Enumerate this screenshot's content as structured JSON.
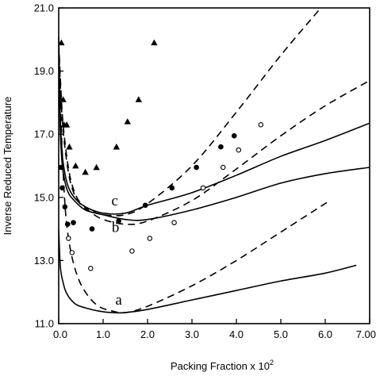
{
  "chart_data": {
    "type": "scatter",
    "xlabel": "Packing Fraction x 10",
    "xlabel_exp": "2",
    "ylabel": "Inverse Reduced Temperature",
    "xlim": [
      0.0,
      7.0
    ],
    "ylim": [
      11.0,
      21.0
    ],
    "x_ticks": [
      {
        "v": 0.0,
        "label": "0.0"
      },
      {
        "v": 1.0,
        "label": "1.0"
      },
      {
        "v": 2.0,
        "label": "2.0"
      },
      {
        "v": 3.0,
        "label": "3.0"
      },
      {
        "v": 4.0,
        "label": "4.0"
      },
      {
        "v": 5.0,
        "label": "5.0"
      },
      {
        "v": 6.0,
        "label": "6.0"
      },
      {
        "v": 7.0,
        "label": "7.00"
      }
    ],
    "y_ticks": [
      {
        "v": 11.0,
        "label": "11.0"
      },
      {
        "v": 13.0,
        "label": "13.0"
      },
      {
        "v": 15.0,
        "label": "15.0"
      },
      {
        "v": 17.0,
        "label": "17.0"
      },
      {
        "v": 19.0,
        "label": "19.0"
      },
      {
        "v": 21.0,
        "label": "21.0"
      }
    ],
    "grid": false,
    "curve_labels": [
      {
        "text": "c",
        "x": 1.26,
        "y": 14.75
      },
      {
        "text": "b",
        "x": 1.28,
        "y": 13.9
      },
      {
        "text": "a",
        "x": 1.35,
        "y": 11.6
      }
    ],
    "series": [
      {
        "marker": "triangle",
        "points": [
          [
            0.06,
            19.9
          ],
          [
            0.1,
            18.1
          ],
          [
            0.12,
            17.3
          ],
          [
            0.18,
            17.3
          ],
          [
            0.24,
            16.6
          ],
          [
            0.38,
            16.0
          ],
          [
            0.6,
            15.8
          ],
          [
            0.85,
            15.95
          ],
          [
            1.3,
            16.6
          ],
          [
            1.55,
            17.4
          ],
          [
            1.8,
            18.1
          ],
          [
            2.15,
            19.9
          ]
        ]
      },
      {
        "marker": "circle-filled",
        "points": [
          [
            0.05,
            15.95
          ],
          [
            0.08,
            15.3
          ],
          [
            0.14,
            14.7
          ],
          [
            0.2,
            14.15
          ],
          [
            0.33,
            14.2
          ],
          [
            0.75,
            14.0
          ],
          [
            1.35,
            14.25
          ],
          [
            1.95,
            14.75
          ],
          [
            2.55,
            15.3
          ],
          [
            3.1,
            15.95
          ],
          [
            3.65,
            16.6
          ],
          [
            3.95,
            16.95
          ]
        ]
      },
      {
        "marker": "circle-open",
        "points": [
          [
            0.22,
            13.7
          ],
          [
            0.3,
            13.25
          ],
          [
            0.72,
            12.75
          ],
          [
            1.65,
            13.3
          ],
          [
            2.05,
            13.7
          ],
          [
            2.6,
            14.2
          ],
          [
            3.25,
            15.3
          ],
          [
            3.7,
            15.95
          ],
          [
            4.05,
            16.5
          ],
          [
            4.55,
            17.3
          ]
        ]
      },
      {
        "style": "solid",
        "points": [
          [
            0.0,
            14.0
          ],
          [
            0.03,
            12.95
          ],
          [
            0.06,
            12.55
          ],
          [
            0.1,
            12.3
          ],
          [
            0.15,
            12.05
          ],
          [
            0.25,
            11.8
          ],
          [
            0.4,
            11.6
          ],
          [
            0.6,
            11.5
          ],
          [
            0.9,
            11.4
          ],
          [
            1.2,
            11.35
          ],
          [
            1.5,
            11.35
          ],
          [
            2.0,
            11.45
          ],
          [
            3.0,
            11.75
          ],
          [
            4.0,
            12.05
          ],
          [
            5.0,
            12.35
          ],
          [
            6.0,
            12.6
          ],
          [
            6.7,
            12.85
          ]
        ]
      },
      {
        "style": "dashed",
        "points": [
          [
            0.0,
            19.9
          ],
          [
            0.05,
            17.5
          ],
          [
            0.1,
            15.8
          ],
          [
            0.15,
            14.6
          ],
          [
            0.2,
            13.9
          ],
          [
            0.3,
            13.1
          ],
          [
            0.45,
            12.4
          ],
          [
            0.65,
            11.9
          ],
          [
            0.9,
            11.55
          ],
          [
            1.2,
            11.4
          ],
          [
            1.5,
            11.35
          ],
          [
            2.0,
            11.55
          ],
          [
            3.0,
            12.2
          ],
          [
            4.0,
            13.0
          ],
          [
            5.0,
            13.9
          ],
          [
            6.05,
            14.85
          ]
        ]
      },
      {
        "style": "solid",
        "points": [
          [
            0.0,
            20.0
          ],
          [
            0.03,
            17.4
          ],
          [
            0.06,
            16.4
          ],
          [
            0.1,
            15.8
          ],
          [
            0.2,
            15.2
          ],
          [
            0.35,
            14.9
          ],
          [
            0.6,
            14.6
          ],
          [
            1.0,
            14.45
          ],
          [
            1.5,
            14.3
          ],
          [
            2.0,
            14.3
          ],
          [
            3.0,
            14.6
          ],
          [
            4.0,
            15.0
          ],
          [
            5.0,
            15.45
          ],
          [
            6.0,
            15.75
          ],
          [
            7.0,
            15.95
          ]
        ]
      },
      {
        "style": "solid",
        "points": [
          [
            0.0,
            20.1
          ],
          [
            0.03,
            17.8
          ],
          [
            0.06,
            16.8
          ],
          [
            0.1,
            16.1
          ],
          [
            0.2,
            15.4
          ],
          [
            0.35,
            15.0
          ],
          [
            0.6,
            14.7
          ],
          [
            1.0,
            14.5
          ],
          [
            1.5,
            14.5
          ],
          [
            2.0,
            14.75
          ],
          [
            3.0,
            15.15
          ],
          [
            4.0,
            15.7
          ],
          [
            5.0,
            16.3
          ],
          [
            6.0,
            16.8
          ],
          [
            7.0,
            17.35
          ]
        ]
      },
      {
        "style": "dashed",
        "points": [
          [
            0.0,
            19.8
          ],
          [
            0.05,
            18.2
          ],
          [
            0.1,
            17.1
          ],
          [
            0.2,
            15.95
          ],
          [
            0.3,
            15.3
          ],
          [
            0.45,
            14.85
          ],
          [
            0.7,
            14.55
          ],
          [
            1.0,
            14.3
          ],
          [
            1.5,
            14.15
          ],
          [
            2.0,
            14.25
          ],
          [
            3.0,
            14.9
          ],
          [
            4.0,
            15.9
          ],
          [
            5.0,
            16.95
          ],
          [
            6.0,
            17.9
          ],
          [
            7.0,
            18.7
          ]
        ]
      },
      {
        "style": "dashed",
        "points": [
          [
            0.0,
            19.9
          ],
          [
            0.05,
            18.4
          ],
          [
            0.1,
            17.3
          ],
          [
            0.2,
            16.1
          ],
          [
            0.3,
            15.4
          ],
          [
            0.45,
            14.9
          ],
          [
            0.7,
            14.6
          ],
          [
            1.0,
            14.45
          ],
          [
            1.5,
            14.45
          ],
          [
            2.0,
            14.8
          ],
          [
            3.0,
            16.0
          ],
          [
            4.0,
            17.7
          ],
          [
            5.0,
            19.5
          ],
          [
            5.9,
            21.0
          ]
        ]
      }
    ]
  }
}
